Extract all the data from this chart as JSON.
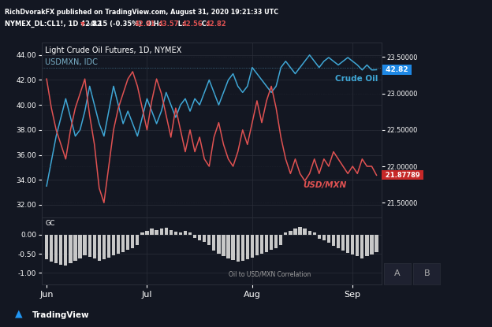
{
  "bg_color": "#131722",
  "grid_color": "#2a2e39",
  "title_line1": "Light Crude Oil Futures, 1D, NYMEX",
  "title_line2": "USDMXN, IDC",
  "crude_color": "#3fa7d6",
  "usdmxn_color": "#e05252",
  "corr_color": "#c8c8c8",
  "crude_label": "Crude Oil",
  "usdmxn_label": "USD/MXN",
  "corr_label": "Oil to USD/MXN Correlation",
  "crude_price_label": "42.82",
  "usdmxn_price_label": "21.87789",
  "crude_price_bg": "#1e88e5",
  "usdmxn_price_bg": "#c62828",
  "left_yticks": [
    32.0,
    34.0,
    36.0,
    38.0,
    40.0,
    42.0,
    44.0
  ],
  "right_yticks": [
    21.5,
    22.0,
    22.5,
    23.0,
    23.5
  ],
  "corr_yticks": [
    -1.0,
    -0.5,
    0.0
  ],
  "xlabel_months": [
    "Jun",
    "Jul",
    "Aug",
    "Sep"
  ],
  "crude_ylim": [
    31.0,
    45.0
  ],
  "usdmxn_ylim": [
    21.3,
    23.7
  ],
  "corr_ylim": [
    -1.3,
    0.45
  ],
  "n_days": 70,
  "crude_data": [
    33.5,
    35.5,
    37.5,
    39.0,
    40.5,
    39.0,
    37.5,
    38.0,
    39.5,
    41.5,
    40.0,
    38.5,
    37.5,
    39.5,
    41.5,
    40.0,
    38.5,
    39.5,
    38.5,
    37.5,
    39.0,
    40.5,
    39.5,
    38.5,
    39.5,
    41.0,
    40.0,
    39.0,
    40.0,
    40.5,
    39.5,
    40.5,
    40.0,
    41.0,
    42.0,
    41.0,
    40.0,
    41.0,
    42.0,
    42.5,
    41.5,
    41.0,
    41.5,
    43.0,
    42.5,
    42.0,
    41.5,
    41.0,
    41.5,
    43.0,
    43.5,
    43.0,
    42.5,
    43.0,
    43.5,
    44.0,
    43.5,
    43.0,
    43.5,
    43.8,
    43.5,
    43.2,
    43.5,
    43.8,
    43.5,
    43.2,
    42.8,
    43.2,
    42.8,
    42.82
  ],
  "usdmxn_data": [
    23.2,
    22.8,
    22.5,
    22.3,
    22.1,
    22.5,
    22.8,
    23.0,
    23.2,
    22.7,
    22.3,
    21.7,
    21.5,
    22.0,
    22.5,
    22.8,
    23.0,
    23.2,
    23.3,
    23.1,
    22.8,
    22.5,
    22.9,
    23.2,
    23.0,
    22.7,
    22.4,
    22.8,
    22.5,
    22.2,
    22.5,
    22.2,
    22.4,
    22.1,
    22.0,
    22.4,
    22.6,
    22.3,
    22.1,
    22.0,
    22.2,
    22.5,
    22.3,
    22.6,
    22.9,
    22.6,
    22.9,
    23.1,
    22.8,
    22.4,
    22.1,
    21.9,
    22.1,
    21.9,
    21.8,
    21.9,
    22.1,
    21.9,
    22.1,
    22.0,
    22.2,
    22.1,
    22.0,
    21.9,
    22.0,
    21.9,
    22.1,
    22.0,
    22.0,
    21.878
  ],
  "corr_data": [
    -0.65,
    -0.7,
    -0.75,
    -0.78,
    -0.8,
    -0.75,
    -0.68,
    -0.62,
    -0.55,
    -0.58,
    -0.62,
    -0.68,
    -0.65,
    -0.6,
    -0.55,
    -0.5,
    -0.45,
    -0.4,
    -0.35,
    -0.28,
    0.05,
    0.1,
    0.15,
    0.12,
    0.15,
    0.18,
    0.12,
    0.08,
    0.05,
    0.1,
    0.05,
    -0.08,
    -0.14,
    -0.2,
    -0.28,
    -0.42,
    -0.5,
    -0.56,
    -0.62,
    -0.66,
    -0.7,
    -0.68,
    -0.64,
    -0.6,
    -0.55,
    -0.5,
    -0.45,
    -0.4,
    -0.35,
    -0.28,
    0.05,
    0.1,
    0.15,
    0.2,
    0.15,
    0.1,
    0.05,
    -0.1,
    -0.16,
    -0.22,
    -0.3,
    -0.36,
    -0.42,
    -0.48,
    -0.52,
    -0.57,
    -0.62,
    -0.57,
    -0.52,
    -0.46
  ]
}
